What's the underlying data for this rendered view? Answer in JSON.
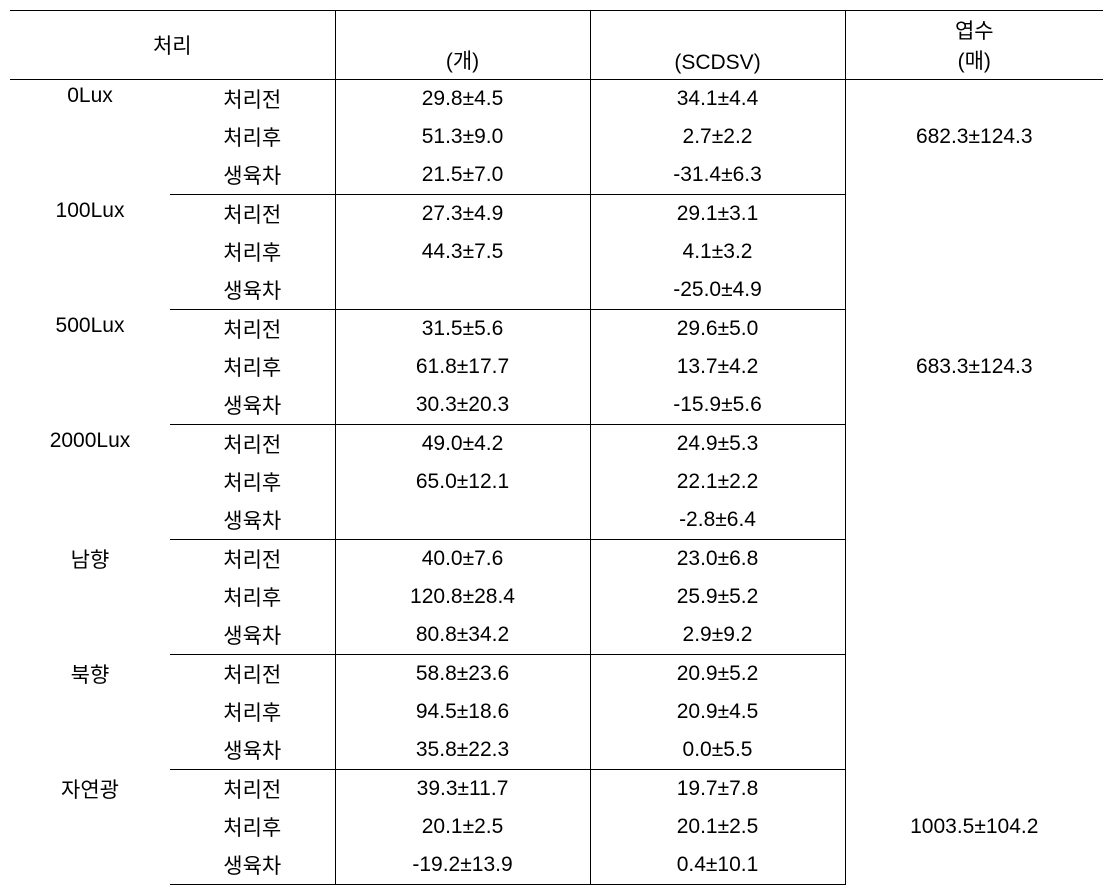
{
  "colors": {
    "background": "#ffffff",
    "text": "#000000",
    "border": "#000000"
  },
  "table": {
    "type": "table",
    "font_family": "Malgun Gothic",
    "font_size_pt": 16,
    "header": {
      "treatment": "처리",
      "count_unit": "(개)",
      "scdsv_unit": "(SCDSV)",
      "leaf_title": "엽수",
      "leaf_unit": "(매)"
    },
    "stages": {
      "before": "처리전",
      "after": "처리후",
      "diff": "생육차"
    },
    "groups": [
      {
        "label": "0Lux",
        "rows": {
          "before": {
            "count": "29.8±4.5",
            "scdsv": "34.1±4.4"
          },
          "after": {
            "count": "51.3±9.0",
            "scdsv": "2.7±2.2"
          },
          "diff": {
            "count": "21.5±7.0",
            "scdsv": "-31.4±6.3"
          }
        },
        "leaf": "682.3±124.3"
      },
      {
        "label": "100Lux",
        "rows": {
          "before": {
            "count": "27.3±4.9",
            "scdsv": "29.1±3.1"
          },
          "after": {
            "count": "44.3±7.5",
            "scdsv": "4.1±3.2"
          },
          "diff": {
            "count": "",
            "scdsv": "-25.0±4.9"
          }
        },
        "leaf": ""
      },
      {
        "label": "500Lux",
        "rows": {
          "before": {
            "count": "31.5±5.6",
            "scdsv": "29.6±5.0"
          },
          "after": {
            "count": "61.8±17.7",
            "scdsv": "13.7±4.2"
          },
          "diff": {
            "count": "30.3±20.3",
            "scdsv": "-15.9±5.6"
          }
        },
        "leaf": "683.3±124.3"
      },
      {
        "label": "2000Lux",
        "rows": {
          "before": {
            "count": "49.0±4.2",
            "scdsv": "24.9±5.3"
          },
          "after": {
            "count": "65.0±12.1",
            "scdsv": "22.1±2.2"
          },
          "diff": {
            "count": "",
            "scdsv": "-2.8±6.4"
          }
        },
        "leaf": ""
      },
      {
        "label": "남향",
        "rows": {
          "before": {
            "count": "40.0±7.6",
            "scdsv": "23.0±6.8"
          },
          "after": {
            "count": "120.8±28.4",
            "scdsv": "25.9±5.2"
          },
          "diff": {
            "count": "80.8±34.2",
            "scdsv": "2.9±9.2"
          }
        },
        "leaf": ""
      },
      {
        "label": "북향",
        "rows": {
          "before": {
            "count": "58.8±23.6",
            "scdsv": "20.9±5.2"
          },
          "after": {
            "count": "94.5±18.6",
            "scdsv": "20.9±4.5"
          },
          "diff": {
            "count": "35.8±22.3",
            "scdsv": "0.0±5.5"
          }
        },
        "leaf": ""
      },
      {
        "label": "자연광",
        "rows": {
          "before": {
            "count": "39.3±11.7",
            "scdsv": "19.7±7.8"
          },
          "after": {
            "count": "20.1±2.5",
            "scdsv": "20.1±2.5"
          },
          "diff": {
            "count": "-19.2±13.9",
            "scdsv": "0.4±10.1"
          }
        },
        "leaf": "1003.5±104.2"
      }
    ]
  }
}
